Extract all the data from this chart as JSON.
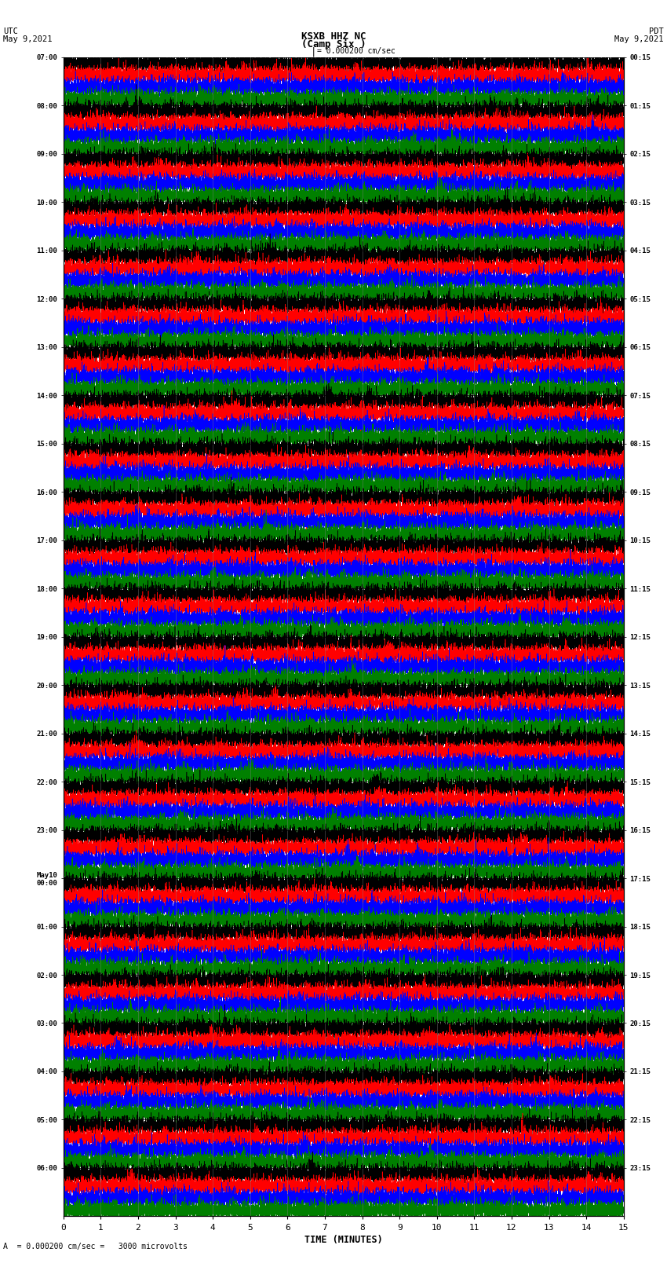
{
  "title_line1": "KSXB HHZ NC",
  "title_line2": "(Camp Six )",
  "left_label": "UTC",
  "left_date": "May 9,2021",
  "right_label": "PDT",
  "right_date": "May 9,2021",
  "xlabel": "TIME (MINUTES)",
  "scale_text": "= 0.000200 cm/sec =   3000 microvolts",
  "bottom_scale_text": "A  = 0.000200 cm/sec =   3000 microvolts",
  "xticks": [
    0,
    1,
    2,
    3,
    4,
    5,
    6,
    7,
    8,
    9,
    10,
    11,
    12,
    13,
    14,
    15
  ],
  "left_times": [
    "07:00",
    "08:00",
    "09:00",
    "10:00",
    "11:00",
    "12:00",
    "13:00",
    "14:00",
    "15:00",
    "16:00",
    "17:00",
    "18:00",
    "19:00",
    "20:00",
    "21:00",
    "22:00",
    "23:00",
    "May10\n00:00",
    "01:00",
    "02:00",
    "03:00",
    "04:00",
    "05:00",
    "06:00"
  ],
  "right_times": [
    "00:15",
    "01:15",
    "02:15",
    "03:15",
    "04:15",
    "05:15",
    "06:15",
    "07:15",
    "08:15",
    "09:15",
    "10:15",
    "11:15",
    "12:15",
    "13:15",
    "14:15",
    "15:15",
    "16:15",
    "17:15",
    "18:15",
    "19:15",
    "20:15",
    "21:15",
    "22:15",
    "23:15"
  ],
  "trace_colors": [
    "black",
    "red",
    "blue",
    "green"
  ],
  "n_hours": 24,
  "n_traces_per_hour": 4,
  "minutes": 15,
  "background_color": "white",
  "fig_width": 8.5,
  "fig_height": 16.13,
  "dpi": 100
}
